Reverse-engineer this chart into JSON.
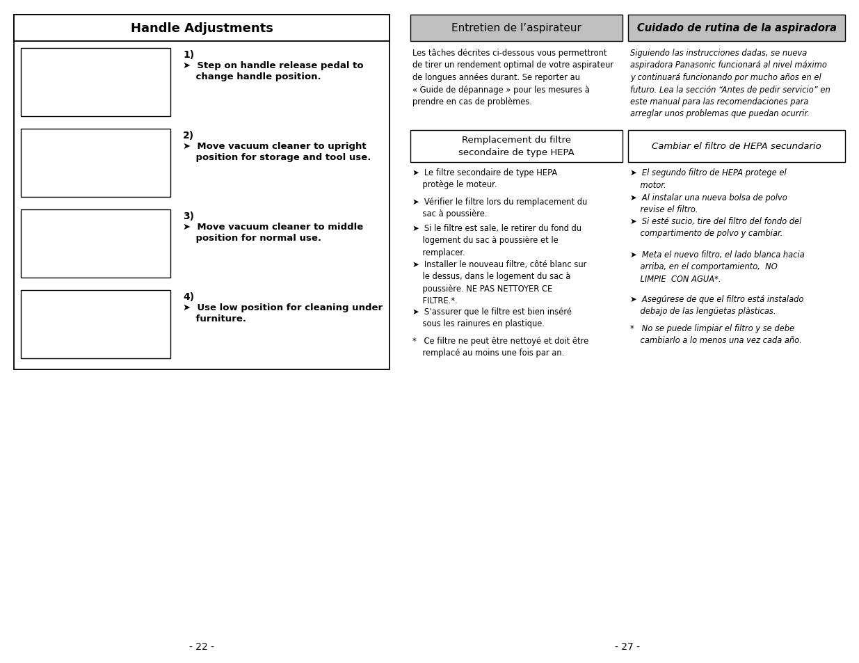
{
  "bg_color": "#ffffff",
  "left_panel_title": "Handle Adjustments",
  "left_items": [
    {
      "number": "1)",
      "line1": "➤  Step on handle release pedal to",
      "line2": "    change handle position."
    },
    {
      "number": "2)",
      "line1": "➤  Move vacuum cleaner to upright",
      "line2": "    position for storage and tool use."
    },
    {
      "number": "3)",
      "line1": "➤  Move vacuum cleaner to middle",
      "line2": "    position for normal use."
    },
    {
      "number": "4)",
      "line1": "➤  Use low position for cleaning under",
      "line2": "    furniture."
    }
  ],
  "right_top_fr": "Entretien de l’aspirateur",
  "right_top_es": "Cuidado de rutina de la aspiradora",
  "right_intro_fr": "Les tâches décrites ci-dessous vous permettront\nde tirer un rendement optimal de votre aspirateur\nde longues années durant. Se reporter au\n« Guide de dépannage » pour les mesures à\nprendre en cas de problèmes.",
  "right_intro_es": "Siguiendo las instrucciones dadas, se nueva\naspiradora Panasonic funcionará al nivel máximo\ny continuará funcionando por mucho años en el\nfuturo. Lea la sección “Antes de pedir servicio” en\neste manual para las recomendaciones para\narreglar unos problemas que puedan ocurrir.",
  "subheader_fr": "Remplacement du filtre\nsecondaire de type HEPA",
  "subheader_es": "Cambiar el filtro de HEPA secundario",
  "bullets_fr": [
    "➤  Le filtre secondaire de type HEPA\n    protège le moteur.",
    "➤  Vérifier le filtre lors du remplacement du\n    sac à poussière.",
    "➤  Si le filtre est sale, le retirer du fond du\n    logement du sac à poussière et le\n    remplacer.",
    "➤  Installer le nouveau filtre, côté blanc sur\n    le dessus, dans le logement du sac à\n    poussière. NE PAS NETTOYER CE\n    FILTRE.*.",
    "➤  S’assurer que le filtre est bien inséré\n    sous les rainures en plastique.",
    "*   Ce filtre ne peut être nettoyé et doit être\n    remplacé au moins une fois par an."
  ],
  "bullets_es": [
    "➤  El segundo filtro de HEPA protege el\n    motor.",
    "➤  Al instalar una nueva bolsa de polvo\n    revise el filtro.",
    "➤  Si esté sucio, tire del filtro del fondo del\n    compartimento de polvo y cambiar.",
    "➤  Meta el nuevo filtro, el lado blanca hacia\n    arriba, en el comportamiento,  NO\n    LIMPIE  CON AGUA*.",
    "➤  Asegúrese de que el filtro está instalado\n    debajo de las lengüetas plàsticas.",
    "*   No se puede limpiar el filtro y se debe\n    cambiarlo a lo menos una vez cada año."
  ],
  "footer_left": "- 22 -",
  "footer_right": "- 27 -"
}
